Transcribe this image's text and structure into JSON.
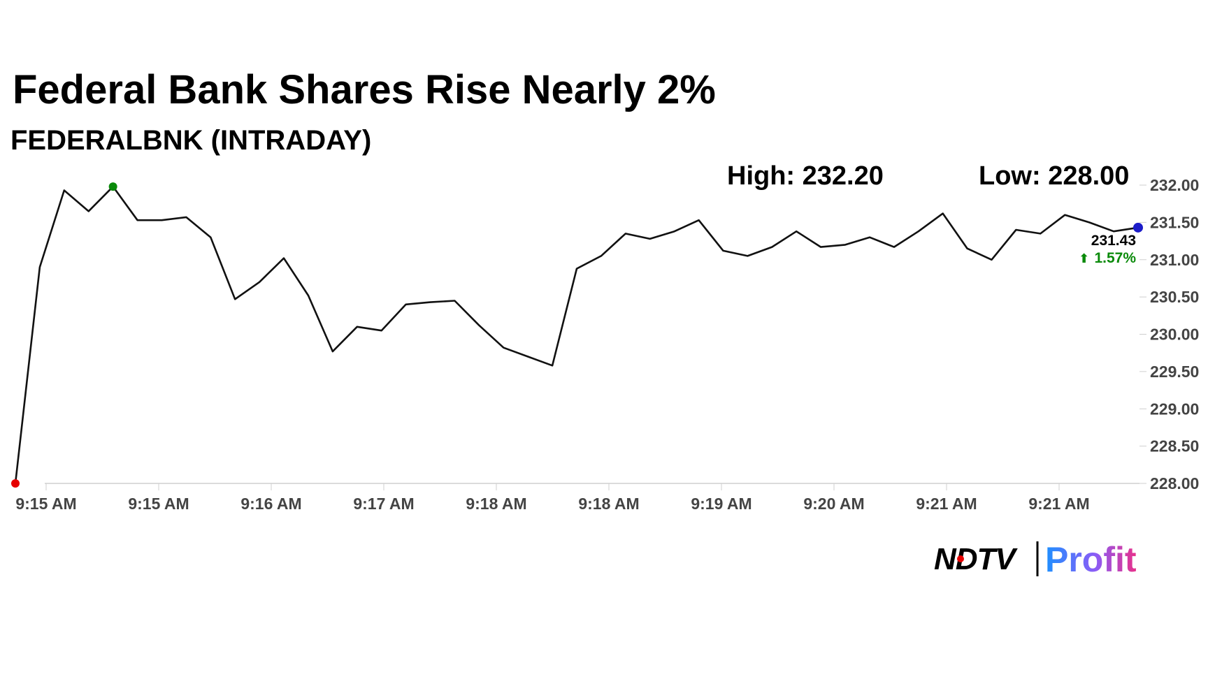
{
  "chart_data": {
    "type": "line",
    "title": "Federal Bank Shares Rise Nearly 2%",
    "subtitle": "FEDERALBNK (INTRADAY)",
    "high_label": "High: 232.20",
    "low_label": "Low: 228.00",
    "last_value_label": "231.43",
    "change_label": "1.57%",
    "change_arrow": "⬆",
    "ylim": [
      228.0,
      232.0
    ],
    "y_ticks": [
      "232.00",
      "231.50",
      "231.00",
      "230.50",
      "230.00",
      "229.50",
      "229.00",
      "228.50",
      "228.00"
    ],
    "x_ticks": [
      "9:15 AM",
      "9:15 AM",
      "9:16 AM",
      "9:17 AM",
      "9:18 AM",
      "9:18 AM",
      "9:19 AM",
      "9:20 AM",
      "9:21 AM",
      "9:21 AM"
    ],
    "grid": false,
    "series": [
      {
        "values": [
          228.0,
          230.9,
          231.93,
          231.65,
          231.98,
          231.53,
          231.53,
          231.57,
          231.3,
          230.47,
          230.7,
          231.02,
          230.52,
          229.77,
          230.1,
          230.05,
          230.4,
          230.43,
          230.45,
          230.12,
          229.82,
          229.7,
          229.58,
          230.88,
          231.05,
          231.35,
          231.28,
          231.38,
          231.53,
          231.12,
          231.05,
          231.17,
          231.38,
          231.17,
          231.2,
          231.3,
          231.17,
          231.38,
          231.62,
          231.15,
          231.0,
          231.4,
          231.35,
          231.6,
          231.5,
          231.38,
          231.43
        ]
      }
    ],
    "markers": {
      "low_color": "#e60000",
      "high_color": "#0a8a0a",
      "last_color": "#1c1cc8",
      "change_color": "#0a8a0a",
      "line_color": "#111111"
    }
  },
  "branding": {
    "ndtv": "NDTV",
    "profit": "Profit",
    "profit_color": "#2b8fe6"
  }
}
